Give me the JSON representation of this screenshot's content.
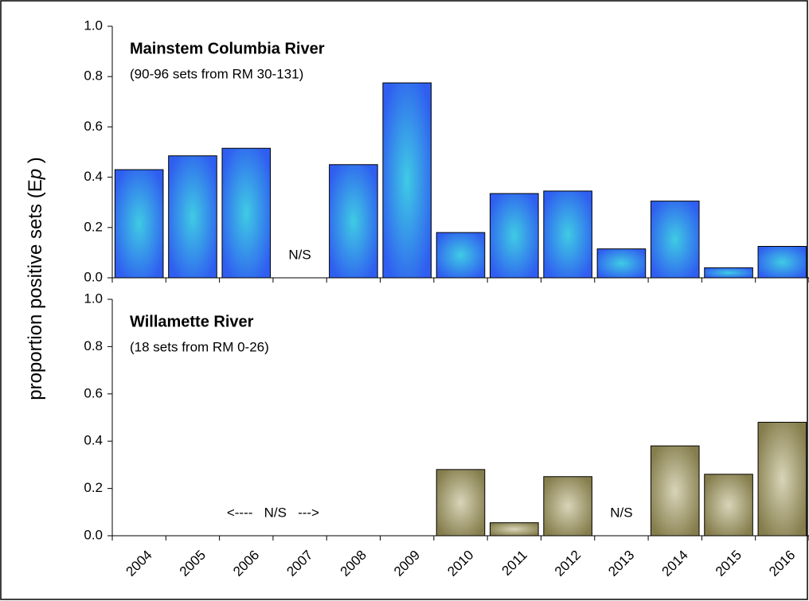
{
  "chart_data": [
    {
      "type": "bar",
      "title": "Mainstem Columbia River",
      "subtitle": "(90-96 sets from RM 30-131)",
      "ylabel": [
        "proportion positive sets (E",
        "p",
        " )"
      ],
      "values": [
        0.43,
        0.485,
        0.515,
        null,
        0.45,
        0.775,
        0.18,
        0.335,
        0.345,
        0.115,
        0.305,
        0.04,
        0.125
      ],
      "color": "#2f5ef0",
      "highlight": "#3fcbe4",
      "ylim": [
        0,
        1
      ],
      "yticks": [
        {
          "value": 0,
          "label": "0.0"
        },
        {
          "value": 0.2,
          "label": "0.2"
        },
        {
          "value": 0.4,
          "label": "0.4"
        },
        {
          "value": 0.6,
          "label": "0.6"
        },
        {
          "value": 0.8,
          "label": "0.8"
        },
        {
          "value": 1,
          "label": "1.0"
        }
      ],
      "annotations": [
        {
          "text": "N/S",
          "at": "2007"
        }
      ]
    },
    {
      "type": "bar",
      "title": "Willamette River",
      "subtitle": "(18 sets from RM 0-26)",
      "categories": [
        "2004",
        "2005",
        "2006",
        "2007",
        "2008",
        "2009",
        "2010",
        "2011",
        "2012",
        "2013",
        "2014",
        "2015",
        "2016"
      ],
      "values": [
        null,
        null,
        null,
        null,
        null,
        null,
        0.28,
        0.055,
        0.25,
        null,
        0.38,
        0.26,
        0.48
      ],
      "color": "#857d4c",
      "highlight": "#d8d4b8",
      "ylim": [
        0,
        1
      ],
      "yticks": [
        {
          "value": 0,
          "label": "0.0"
        },
        {
          "value": 0.2,
          "label": "0.2"
        },
        {
          "value": 0.4,
          "label": "0.4"
        },
        {
          "value": 0.6,
          "label": "0.6"
        },
        {
          "value": 0.8,
          "label": "0.8"
        },
        {
          "value": 1,
          "label": "1.0"
        }
      ],
      "annotations": [
        {
          "text": "<----   N/S   --->",
          "at": "2004 2009"
        },
        {
          "text": "N/S",
          "at": "2013"
        }
      ]
    }
  ]
}
